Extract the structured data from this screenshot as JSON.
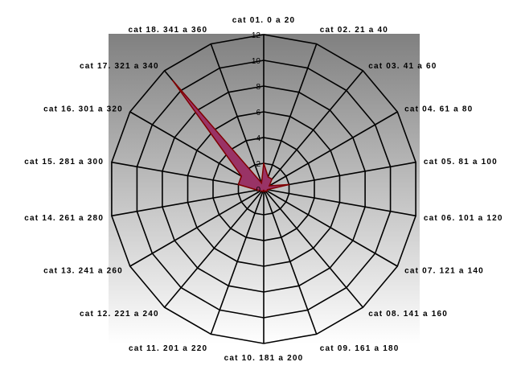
{
  "chart_data": {
    "type": "radar",
    "title": "",
    "categories": [
      "cat 01. 0 a 20",
      "cat 02. 21 a 40",
      "cat 03. 41 a 60",
      "cat 04. 61 a 80",
      "cat 05. 81 a 100",
      "cat 06. 101 a 120",
      "cat 07. 121 a 140",
      "cat 08. 141 a 160",
      "cat 09. 161 a 180",
      "cat 10. 181 a 200",
      "cat 11. 201 a 220",
      "cat 12. 221 a 240",
      "cat 13. 241 a 260",
      "cat 14. 261 a 280",
      "cat 15. 281 a 300",
      "cat 16. 301 a 320",
      "cat 17. 321 a 340",
      "cat 18. 341 a 360"
    ],
    "series": [
      {
        "values": [
          2,
          1,
          1,
          0.5,
          2,
          0.3,
          0.3,
          0.2,
          0.2,
          0.1,
          0.2,
          0.2,
          0.3,
          0.5,
          2,
          2,
          11,
          0.5
        ]
      }
    ],
    "radial_axis": {
      "min": 0,
      "max": 12,
      "step": 2,
      "ticks": [
        "0",
        "2",
        "4",
        "6",
        "8",
        "10",
        "12"
      ]
    },
    "grid": true,
    "legend": "none",
    "colors": {
      "series_fill": "#993366",
      "series_stroke": "#800000",
      "grid": "#000000",
      "plot_bg_top": "#808080",
      "plot_bg_bottom": "#ffffff"
    }
  }
}
